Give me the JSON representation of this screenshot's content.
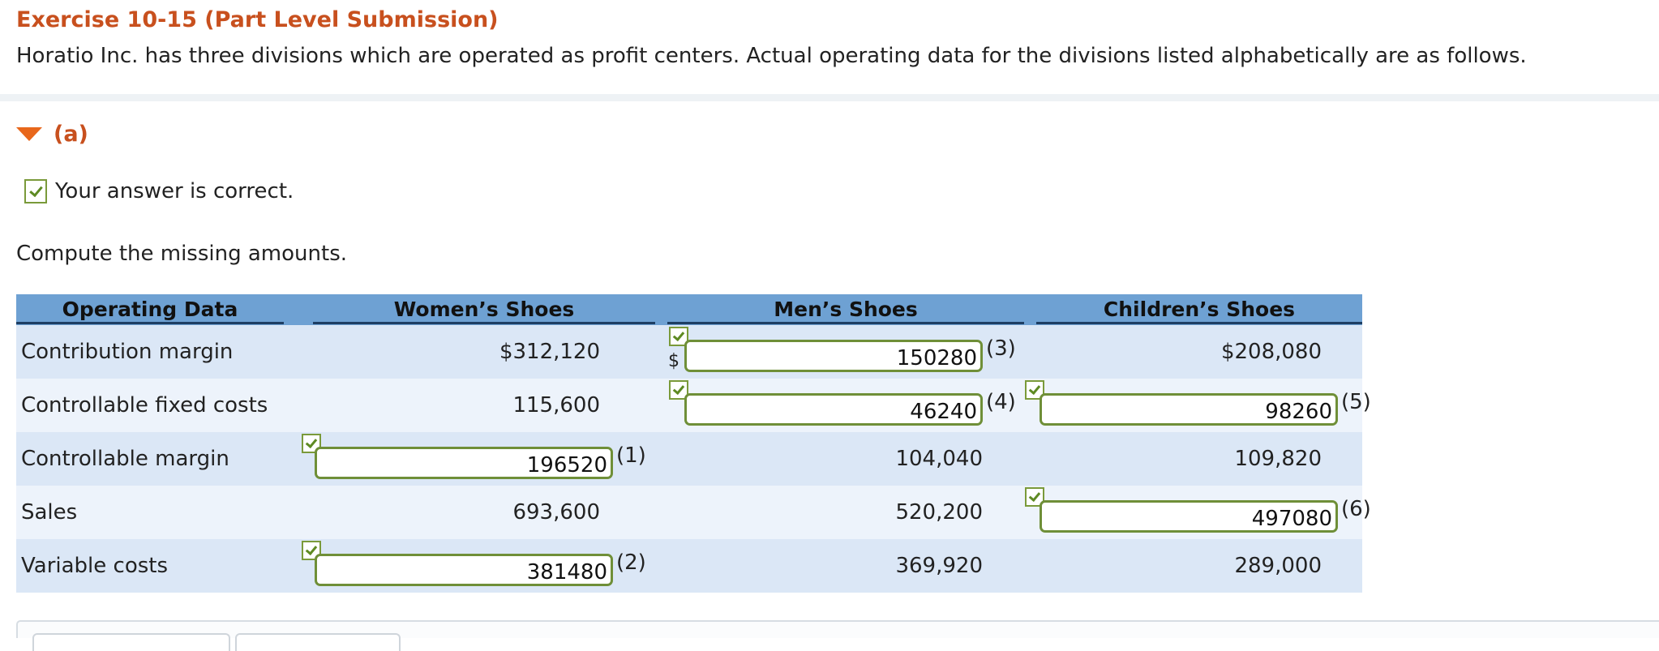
{
  "exercise": {
    "title": "Exercise 10-15 (Part Level Submission)",
    "intro": "Horatio Inc. has three divisions which are operated as profit centers. Actual operating data for the divisions listed alphabetically are as follows."
  },
  "part": {
    "label": "(a)",
    "status": "Your answer is correct.",
    "instruction": "Compute the missing amounts."
  },
  "table": {
    "headers": [
      "Operating Data",
      "Women’s Shoes",
      "Men’s Shoes",
      "Children’s Shoes"
    ],
    "rows": [
      {
        "label": "Contribution margin",
        "womens": "$312,120",
        "mens_currency": "$",
        "mens_input": "150280",
        "mens_ref": "(3)",
        "childrens": "$208,080"
      },
      {
        "label": "Controllable fixed costs",
        "womens": "115,600",
        "mens_input": "46240",
        "mens_ref": "(4)",
        "childrens_input": "98260",
        "childrens_ref": "(5)"
      },
      {
        "label": "Controllable margin",
        "womens_input": "196520",
        "womens_ref": "(1)",
        "mens": "104,040",
        "childrens": "109,820"
      },
      {
        "label": "Sales",
        "womens": "693,600",
        "mens": "520,200",
        "childrens_input": "497080",
        "childrens_ref": "(6)"
      },
      {
        "label": "Variable costs",
        "womens_input": "381480",
        "womens_ref": "(2)",
        "mens": "369,920",
        "childrens": "289,000"
      }
    ]
  },
  "colors": {
    "title": "#c8501e",
    "header_bg": "#6ea1d3",
    "row_shade": "#dbe7f6",
    "row_light": "#edf3fb",
    "correct_green": "#6f8f38"
  }
}
